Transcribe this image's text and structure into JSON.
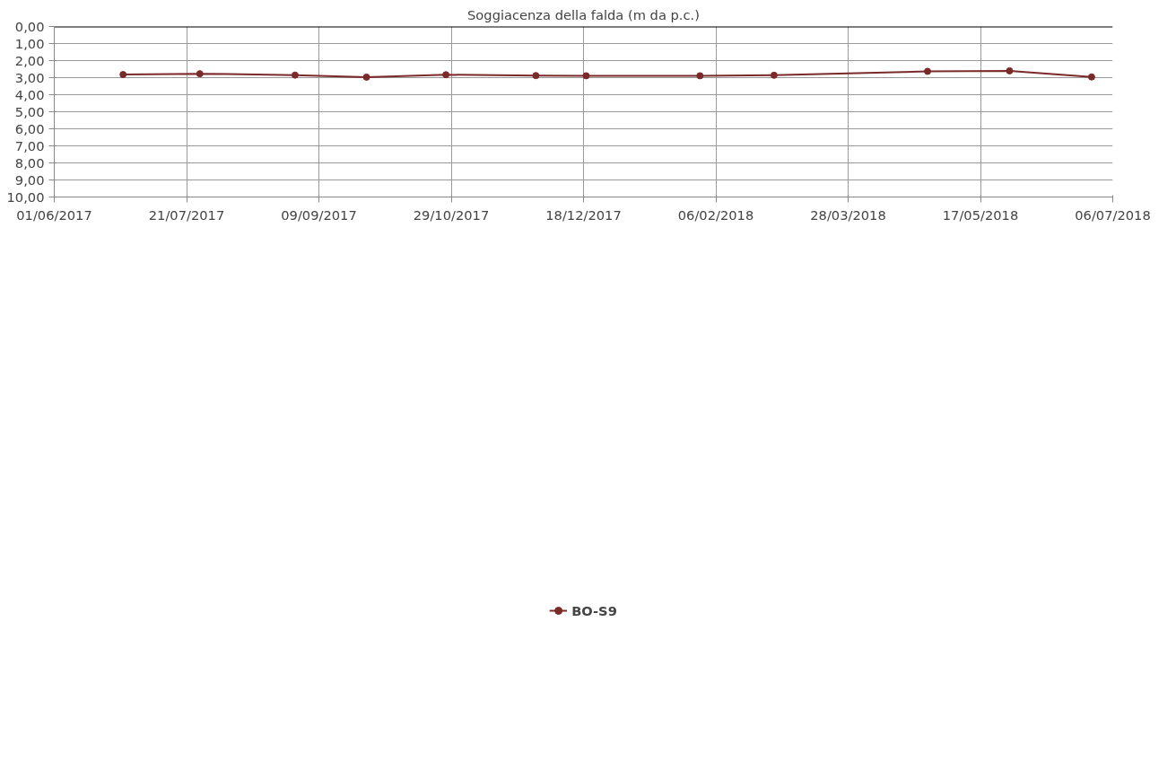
{
  "chart_data": {
    "type": "line",
    "title": "Soggiacenza della falda (m da p.c.)",
    "x": [
      "2017-06-27",
      "2017-07-26",
      "2017-08-31",
      "2017-09-27",
      "2017-10-27",
      "2017-11-30",
      "2017-12-19",
      "2018-01-31",
      "2018-02-28",
      "2018-04-27",
      "2018-05-28",
      "2018-06-28"
    ],
    "series": [
      {
        "name": "BO-S9",
        "color": "#7b2a2a",
        "values": [
          2.82,
          2.77,
          2.85,
          2.97,
          2.83,
          2.88,
          2.89,
          2.89,
          2.86,
          2.63,
          2.6,
          2.96
        ]
      }
    ],
    "ylim": [
      10,
      0
    ],
    "yticks": [
      {
        "value": 0,
        "label": "0,00"
      },
      {
        "value": 1,
        "label": "1,00"
      },
      {
        "value": 2,
        "label": "2,00"
      },
      {
        "value": 3,
        "label": "3,00"
      },
      {
        "value": 4,
        "label": "4,00"
      },
      {
        "value": 5,
        "label": "5,00"
      },
      {
        "value": 6,
        "label": "6,00"
      },
      {
        "value": 7,
        "label": "7,00"
      },
      {
        "value": 8,
        "label": "8,00"
      },
      {
        "value": 9,
        "label": "9,00"
      },
      {
        "value": 10,
        "label": "10,00"
      }
    ],
    "xlim": [
      "2017-06-01",
      "2018-07-06"
    ],
    "xticks": [
      {
        "value": "2017-06-01",
        "label": "01/06/2017"
      },
      {
        "value": "2017-07-21",
        "label": "21/07/2017"
      },
      {
        "value": "2017-09-09",
        "label": "09/09/2017"
      },
      {
        "value": "2017-10-29",
        "label": "29/10/2017"
      },
      {
        "value": "2017-12-18",
        "label": "18/12/2017"
      },
      {
        "value": "2018-02-06",
        "label": "06/02/2018"
      },
      {
        "value": "2018-03-28",
        "label": "28/03/2018"
      },
      {
        "value": "2018-05-17",
        "label": "17/05/2018"
      },
      {
        "value": "2018-07-06",
        "label": "06/07/2018"
      }
    ],
    "grid": true,
    "legend": "bottom",
    "marker": "circle",
    "line_style": "solid"
  }
}
